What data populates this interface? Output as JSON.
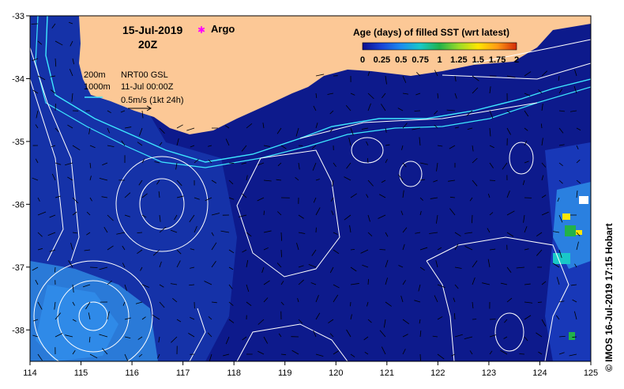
{
  "header": {
    "date": "15-Jul-2019",
    "time": "20Z",
    "argo_label": "Argo"
  },
  "colorbar": {
    "title": "Age (days) of filled SST (wrt latest)",
    "ticks": [
      "0",
      "0.25",
      "0.5",
      "0.75",
      "1",
      "1.25",
      "1.5",
      "1.75",
      "2"
    ],
    "colors": [
      "#0d0d8c",
      "#1a44d8",
      "#1c8cf0",
      "#19c8c8",
      "#22b24a",
      "#9adc28",
      "#ffe600",
      "#ff9a14",
      "#d22a0a"
    ]
  },
  "legend": {
    "contour_200": "200m",
    "contour_1000": "1000m",
    "product": "NRT00 GSL",
    "product_date": "11-Jul 00:00Z",
    "vector_scale": "0.5m/s (1kt 24h)"
  },
  "credit": "© IMOS 16-Jul-2019 17:15 Hobart",
  "map": {
    "lon_range": [
      114,
      125
    ],
    "lat_range": [
      -38.5,
      -33
    ],
    "x_ticks": [
      "114",
      "115",
      "116",
      "117",
      "118",
      "119",
      "120",
      "121",
      "122",
      "123",
      "124",
      "125"
    ],
    "y_ticks": [
      "-33",
      "-34",
      "-35",
      "-36",
      "-37",
      "-38"
    ],
    "land_color": "#fcc896",
    "ocean_color": "#0d1a8c",
    "contour_color": "#ffffff",
    "bathymetry_color": "#3ee8ff"
  }
}
